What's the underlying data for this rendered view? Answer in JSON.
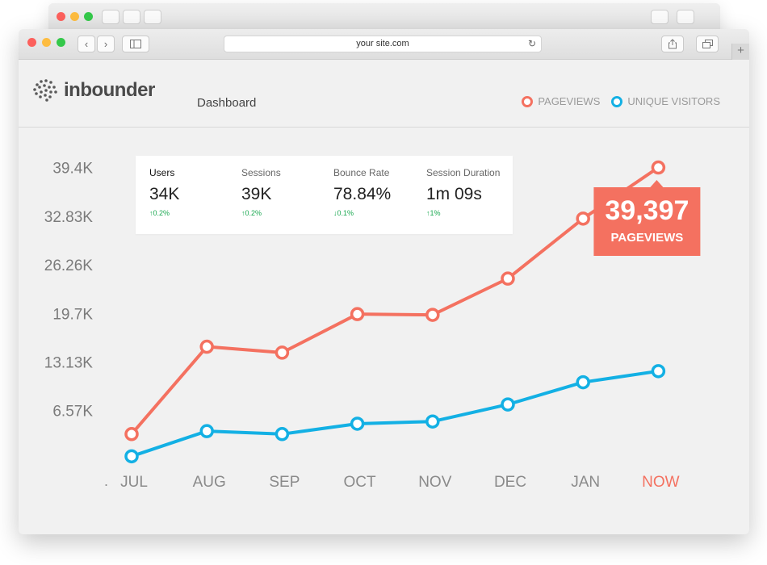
{
  "browser": {
    "address": "your site.com"
  },
  "app": {
    "logo": "inbounder",
    "nav_title": "Dashboard",
    "legend": [
      {
        "label": "PAGEVIEWS",
        "color": "#f47160"
      },
      {
        "label": "UNIQUE VISITORS",
        "color": "#13b0e4"
      }
    ]
  },
  "stats": [
    {
      "label": "Users",
      "value": "34K",
      "delta": "0.2%",
      "direction": "up"
    },
    {
      "label": "Sessions",
      "value": "39K",
      "delta": "0.2%",
      "direction": "up"
    },
    {
      "label": "Bounce Rate",
      "value": "78.84%",
      "delta": "0.1%",
      "direction": "down"
    },
    {
      "label": "Session Duration",
      "value": "1m 09s",
      "delta": "1%",
      "direction": "up"
    }
  ],
  "callout": {
    "value": "39,397",
    "label": "PAGEVIEWS"
  },
  "chart_data": {
    "type": "line",
    "categories": [
      "JUL",
      "AUG",
      "SEP",
      "OCT",
      "NOV",
      "DEC",
      "JAN",
      "NOW"
    ],
    "x_axis_prefix": ".",
    "highlight_category": "NOW",
    "y_ticks": [
      6570,
      13130,
      19700,
      26260,
      32830,
      39400
    ],
    "y_tick_labels": [
      "6.57K",
      "13.13K",
      "19.7K",
      "26.26K",
      "32.83K",
      "39.4K"
    ],
    "ylim": [
      0,
      40000
    ],
    "series": [
      {
        "name": "PAGEVIEWS",
        "color": "#f47160",
        "values": [
          3400,
          15200,
          14400,
          19600,
          19500,
          24400,
          32500,
          39397
        ]
      },
      {
        "name": "UNIQUE VISITORS",
        "color": "#13b0e4",
        "values": [
          400,
          3800,
          3400,
          4800,
          5100,
          7400,
          10400,
          11900
        ]
      }
    ],
    "title": "",
    "xlabel": "",
    "ylabel": "",
    "grid": false,
    "legend_position": "top-right"
  }
}
